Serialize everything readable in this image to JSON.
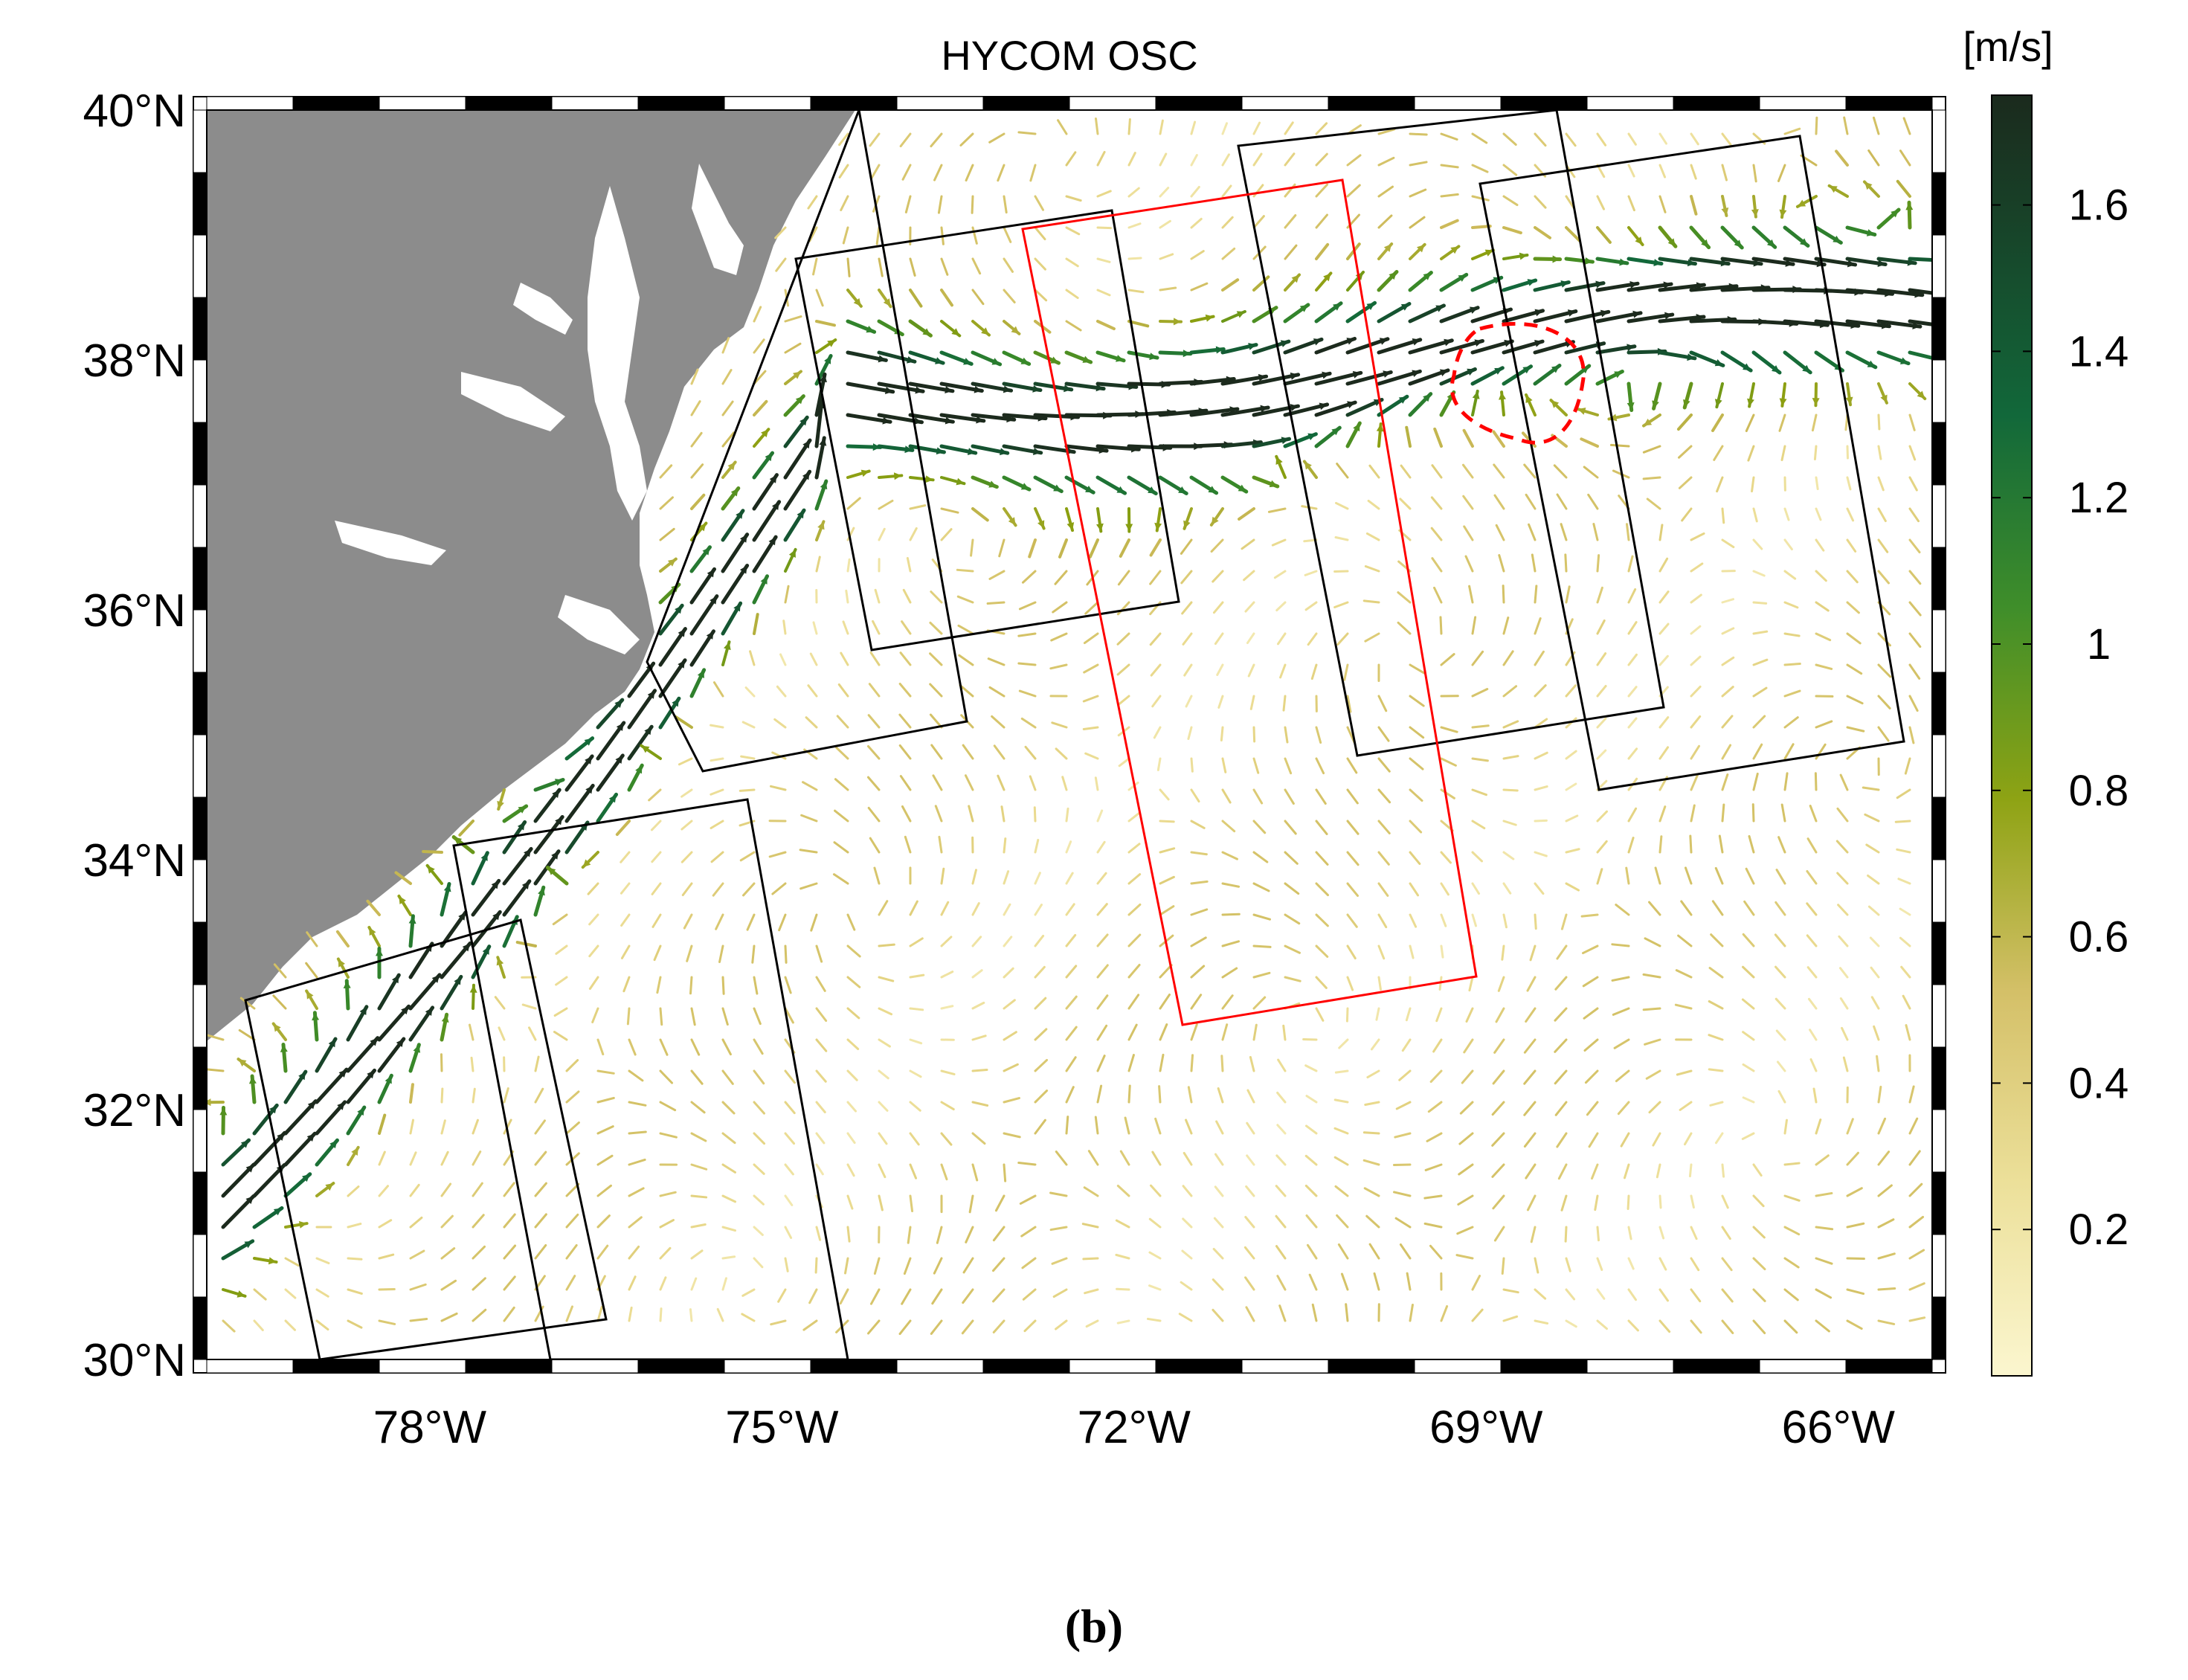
{
  "map": {
    "title": "HYCOM OSC",
    "unit_label": "[m/s]",
    "lat_labels": [
      "30°N",
      "32°N",
      "34°N",
      "36°N",
      "38°N",
      "40°N"
    ],
    "lon_labels": [
      "78°W",
      "75°W",
      "72°W",
      "69°W",
      "66°W"
    ],
    "lat_range": [
      30,
      40
    ],
    "lon_range": [
      -79.9,
      -65.2
    ],
    "colorbar": {
      "range": [
        0,
        1.75
      ],
      "ticks": [
        0.2,
        0.4,
        0.6,
        0.8,
        1,
        1.2,
        1.4,
        1.6
      ],
      "tick_labels": [
        "0.2",
        "0.4",
        "0.6",
        "0.8",
        "1",
        "1.2",
        "1.4",
        "1.6"
      ],
      "colors": [
        "#fbf6cf",
        "#e8d98a",
        "#c9b450",
        "#8b9f10",
        "#3a8a28",
        "#12683a",
        "#1c2a1c"
      ]
    },
    "land_color": "#8c8c8c",
    "swath_color": "#000000",
    "highlight_color": "#ff0000"
  },
  "caption": {
    "label": "(b)"
  }
}
